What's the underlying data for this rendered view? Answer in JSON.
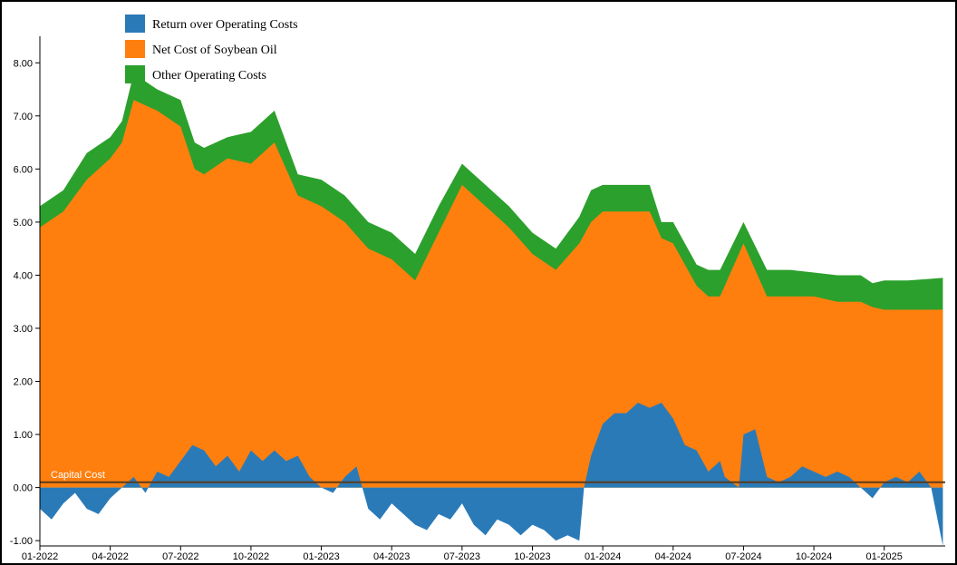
{
  "chart_data": {
    "type": "area",
    "title": "",
    "xlabel": "",
    "ylabel": "",
    "xlim": [
      0,
      38.6
    ],
    "ylim": [
      -1.1,
      8.5
    ],
    "y_ticks": [
      -1.0,
      0.0,
      1.0,
      2.0,
      3.0,
      4.0,
      5.0,
      6.0,
      7.0,
      8.0
    ],
    "y_tick_labels": [
      "-1.00",
      "0.00",
      "1.00",
      "2.00",
      "3.00",
      "4.00",
      "5.00",
      "6.00",
      "7.00",
      "8.00"
    ],
    "x_ticks": [
      0,
      3,
      6,
      9,
      12,
      15,
      18,
      21,
      24,
      27,
      30,
      33,
      36
    ],
    "x_tick_labels": [
      "01-2022",
      "04-2022",
      "07-2022",
      "10-2022",
      "01-2023",
      "04-2023",
      "07-2023",
      "10-2023",
      "01-2024",
      "04-2024",
      "07-2024",
      "10-2024",
      "01-2025"
    ],
    "x_unit": "months since 01-2022",
    "capital_cost": {
      "label": "Capital Cost",
      "value": 0.1
    },
    "colors": {
      "return": "#2a7ab8",
      "soybean": "#ff7f0e",
      "other": "#2ca02c",
      "capital_line": "#5a3a1a",
      "axis": "#000000"
    },
    "legend": [
      {
        "name": "Return over Operating Costs",
        "color": "#2a7ab8"
      },
      {
        "name": "Net Cost of Soybean Oil",
        "color": "#ff7f0e"
      },
      {
        "name": "Other Operating Costs",
        "color": "#2ca02c"
      }
    ],
    "stack_top_series": {
      "x": [
        0,
        1,
        2,
        3,
        3.5,
        4,
        5,
        6,
        6.6,
        7,
        8,
        9,
        10,
        11,
        12,
        13,
        14,
        15,
        16,
        17,
        18,
        18.5,
        19,
        20,
        21,
        22,
        23,
        23.5,
        24,
        25,
        26,
        26.5,
        27,
        28,
        28.5,
        29,
        30,
        31,
        32,
        33,
        34,
        35,
        35.5,
        36,
        37,
        38.5
      ],
      "net_cost_top": [
        4.9,
        5.2,
        5.8,
        6.2,
        6.5,
        7.3,
        7.1,
        6.8,
        6.0,
        5.9,
        6.2,
        6.1,
        6.5,
        5.5,
        5.3,
        5.0,
        4.5,
        4.3,
        3.9,
        4.8,
        5.7,
        5.5,
        5.3,
        4.9,
        4.4,
        4.1,
        4.6,
        5.0,
        5.2,
        5.2,
        5.2,
        4.7,
        4.6,
        3.8,
        3.6,
        3.6,
        4.6,
        3.6,
        3.6,
        3.6,
        3.5,
        3.5,
        3.4,
        3.35,
        3.35,
        3.35
      ],
      "total_top": [
        5.3,
        5.6,
        6.3,
        6.6,
        6.9,
        7.8,
        7.5,
        7.3,
        6.5,
        6.4,
        6.6,
        6.7,
        7.1,
        5.9,
        5.8,
        5.5,
        5.0,
        4.8,
        4.4,
        5.3,
        6.1,
        5.9,
        5.7,
        5.3,
        4.8,
        4.5,
        5.1,
        5.6,
        5.7,
        5.7,
        5.7,
        5.0,
        5.0,
        4.2,
        4.1,
        4.1,
        5.0,
        4.1,
        4.1,
        4.05,
        4.0,
        4.0,
        3.85,
        3.9,
        3.9,
        3.95
      ]
    },
    "return_series": {
      "x": [
        0,
        0.5,
        1,
        1.5,
        2,
        2.5,
        3,
        3.5,
        4,
        4.5,
        5,
        5.5,
        6,
        6.5,
        7,
        7.5,
        8,
        8.5,
        9,
        9.5,
        10,
        10.5,
        11,
        11.5,
        12,
        12.5,
        13,
        13.5,
        14,
        14.5,
        15,
        15.5,
        16,
        16.5,
        17,
        17.5,
        18,
        18.5,
        19,
        19.5,
        20,
        20.5,
        21,
        21.5,
        22,
        22.5,
        23,
        23.2,
        23.5,
        24,
        24.5,
        25,
        25.5,
        26,
        26.5,
        27,
        27.5,
        28,
        28.5,
        29,
        29.2,
        29.5,
        29.8,
        30,
        30.5,
        31,
        31.5,
        32,
        32.5,
        33,
        33.5,
        34,
        34.5,
        35,
        35.5,
        36,
        36.5,
        37,
        37.5,
        38,
        38.5
      ],
      "values": [
        -0.4,
        -0.6,
        -0.3,
        -0.1,
        -0.4,
        -0.5,
        -0.2,
        0.0,
        0.2,
        -0.1,
        0.3,
        0.2,
        0.5,
        0.8,
        0.7,
        0.4,
        0.6,
        0.3,
        0.7,
        0.5,
        0.7,
        0.5,
        0.6,
        0.2,
        0.0,
        -0.1,
        0.2,
        0.4,
        -0.4,
        -0.6,
        -0.3,
        -0.5,
        -0.7,
        -0.8,
        -0.5,
        -0.6,
        -0.3,
        -0.7,
        -0.9,
        -0.6,
        -0.7,
        -0.9,
        -0.7,
        -0.8,
        -1.0,
        -0.9,
        -1.0,
        0.0,
        0.6,
        1.2,
        1.4,
        1.4,
        1.6,
        1.5,
        1.6,
        1.3,
        0.8,
        0.7,
        0.3,
        0.5,
        0.2,
        0.1,
        0.0,
        1.0,
        1.1,
        0.2,
        0.1,
        0.2,
        0.4,
        0.3,
        0.2,
        0.3,
        0.2,
        0.0,
        -0.2,
        0.1,
        0.2,
        0.1,
        0.3,
        0.0,
        -1.1
      ]
    }
  }
}
